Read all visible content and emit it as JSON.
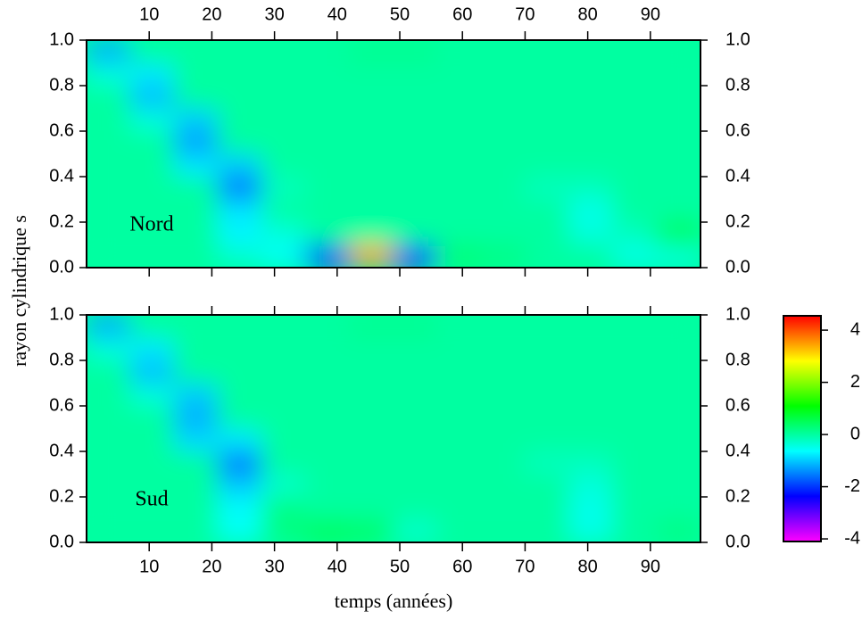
{
  "chart_data": [
    {
      "type": "heatmap",
      "label": "Nord",
      "y_label": "rayon cylindrique s",
      "x": [
        3.5,
        10.5,
        17.5,
        24.5,
        31.5,
        38.5,
        45.5,
        52.5,
        59.5,
        66.5,
        73.5,
        80.5,
        87.5,
        94.5
      ],
      "y": [
        0.05,
        0.15,
        0.25,
        0.35,
        0.45,
        0.55,
        0.65,
        0.75,
        0.85,
        0.95
      ],
      "z": [
        [
          0,
          0,
          0,
          -0.3,
          -0.6,
          -2.2,
          3.5,
          -2.5,
          0.3,
          0.2,
          0,
          0,
          -0.5,
          -0.4
        ],
        [
          0,
          0,
          0,
          -0.7,
          -0.4,
          0,
          0,
          0,
          0,
          0,
          0,
          -0.4,
          -0.2,
          0.5
        ],
        [
          0,
          0,
          0,
          -0.8,
          0,
          0,
          0,
          0,
          0,
          0,
          0,
          -0.5,
          0,
          0
        ],
        [
          0,
          0,
          0,
          -1.6,
          -0.2,
          0,
          0,
          0,
          0,
          0,
          -0.2,
          -0.2,
          0,
          0
        ],
        [
          0,
          0,
          -0.8,
          -1,
          0,
          0,
          0,
          0,
          0,
          0,
          0,
          0,
          0,
          0
        ],
        [
          0,
          0,
          -1.3,
          0,
          0,
          0,
          0,
          0,
          0,
          0,
          0,
          0,
          0,
          0
        ],
        [
          0,
          -0.4,
          -1,
          0,
          0,
          0,
          0,
          0,
          0,
          0,
          0,
          0,
          0,
          0
        ],
        [
          0,
          -1.1,
          0,
          0,
          0,
          0,
          0,
          0,
          0,
          0,
          0,
          0,
          0,
          0
        ],
        [
          -0.4,
          -0.8,
          0,
          0,
          0,
          0,
          0,
          0,
          0,
          0,
          0,
          0,
          0,
          0
        ],
        [
          -1.2,
          0,
          0,
          0,
          0,
          0,
          0.1,
          0.1,
          0,
          0,
          0,
          0,
          0,
          0
        ]
      ],
      "xlim": [
        0,
        98
      ],
      "ylim": [
        0,
        1
      ],
      "xticks": [
        10,
        20,
        30,
        40,
        50,
        60,
        70,
        80,
        90
      ],
      "yticks": [
        {
          "value": 0,
          "label": "0.0"
        },
        0.2,
        0.4,
        0.6,
        0.8,
        {
          "value": 1,
          "label": "1.0"
        }
      ]
    },
    {
      "type": "heatmap",
      "label": "Sud",
      "x_label": "temps (années)",
      "x": [
        3.5,
        10.5,
        17.5,
        24.5,
        31.5,
        38.5,
        45.5,
        52.5,
        59.5,
        66.5,
        73.5,
        80.5,
        87.5,
        94.5
      ],
      "y": [
        0.05,
        0.15,
        0.25,
        0.35,
        0.45,
        0.55,
        0.65,
        0.75,
        0.85,
        0.95
      ],
      "z": [
        [
          0,
          0,
          0,
          -0.6,
          0.2,
          0.5,
          0.4,
          -0.3,
          0,
          0,
          0,
          -0.5,
          0,
          0.2
        ],
        [
          0,
          0,
          0,
          -0.6,
          0.2,
          0,
          0,
          0,
          0,
          0,
          0,
          -0.5,
          0,
          0
        ],
        [
          0,
          0,
          0,
          -1,
          -0.3,
          0,
          0,
          0,
          0,
          0,
          0,
          -0.4,
          0,
          0
        ],
        [
          0,
          0,
          0,
          -1.6,
          0,
          0,
          0,
          0,
          0,
          0,
          -0.2,
          -0.2,
          0,
          0
        ],
        [
          0,
          0,
          -0.9,
          -0.8,
          0,
          0,
          0,
          0,
          0,
          0,
          0,
          0,
          0,
          0
        ],
        [
          0,
          0,
          -1.2,
          0,
          0,
          0,
          0,
          0,
          0,
          0,
          0,
          0,
          0,
          0
        ],
        [
          0,
          -0.4,
          -1,
          0,
          0,
          0,
          0,
          0,
          0,
          0,
          0,
          0,
          0,
          0
        ],
        [
          0,
          -1.1,
          0,
          0,
          0,
          0,
          0,
          0,
          0,
          0,
          0,
          0,
          0,
          0
        ],
        [
          -0.4,
          -0.8,
          0,
          0,
          0,
          0,
          0,
          0,
          0,
          0,
          0,
          0,
          0,
          0
        ],
        [
          -1.2,
          0,
          0,
          0,
          0,
          0,
          0.1,
          0.1,
          0,
          0,
          0,
          0,
          0,
          0
        ]
      ],
      "xlim": [
        0,
        98
      ],
      "ylim": [
        0,
        1
      ],
      "xticks": [
        10,
        20,
        30,
        40,
        50,
        60,
        70,
        80,
        90
      ],
      "yticks": [
        {
          "value": 0,
          "label": "0.0"
        },
        0.2,
        0.4,
        0.6,
        0.8,
        {
          "value": 1,
          "label": "1.0"
        }
      ],
      "clim": [
        -4.1,
        4.55
      ],
      "cticks": [
        -4,
        -2,
        0,
        2,
        4
      ],
      "colormap": [
        "#ff00ff",
        "#8000ff",
        "#0000ff",
        "#0080ff",
        "#00ffff",
        "#00ff80",
        "#00ff00",
        "#80ff00",
        "#ffff00",
        "#ff8000",
        "#ff0000"
      ]
    }
  ]
}
